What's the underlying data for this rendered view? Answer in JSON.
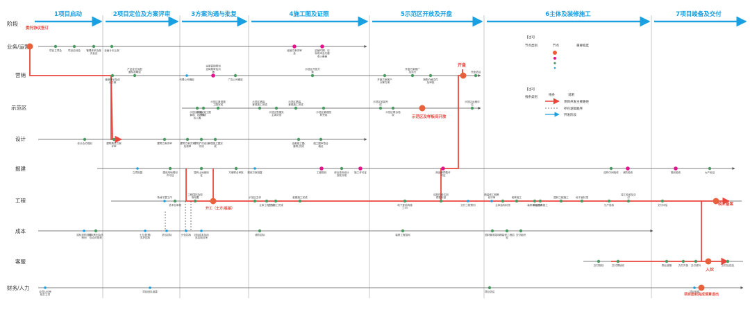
{
  "header": {
    "stage_label": "阶段",
    "phases": [
      "1项目启动",
      "2项目定位及方案评审",
      "3方案沟通与批复",
      "4施工图及证照",
      "5示范区开放及开盘",
      "6主体及装修施工",
      "7项目竣备及交付"
    ]
  },
  "lanes": [
    "业务/运营",
    "营销",
    "示范区",
    "设计",
    "报建",
    "工程",
    "成本",
    "客服",
    "财务/人力"
  ],
  "legend": {
    "title_nodes": "【注1】",
    "node_type_label": "节点类别",
    "node_label": "节点",
    "degree_label": "重要程度",
    "title_lines": "【注2】",
    "line_type_label": "线条类别",
    "line_label": "线条",
    "desc_label": "说明",
    "line_main": "项目开发主要路径",
    "line_logic": "存在逻辑顺序",
    "line_open": "开发阶段"
  },
  "milestones": {
    "sign": "委托协议签订",
    "open_sale": "开盘",
    "showroom": "示范区及样板间开放",
    "start": "开工（土方/桩基）",
    "topping": "竣工备案",
    "delivery": "入伙",
    "audit": "项目面积完成清算退出"
  },
  "nodes": {
    "ops_1": "项目立项会",
    "ops_2": "项目启动会",
    "ops_3": "管理体系及首次会议",
    "ops_4": "全面计划上报",
    "ops_5": "经营方案评审会",
    "ops_6": "启营时期、目标成本及代建收入最高",
    "mkt_1": "营销策划及设计方案",
    "mkt_2": "产品定位及配置标准确定",
    "mkt_3": "代理公司确定",
    "mkt_4": "全面营销策划全局报审及沟通",
    "mkt_5": "广告公司确定",
    "mkt_6": "示范区开放方案",
    "mkt_7": "开盘方案客户认筹方案",
    "mkt_8": "开盘方案推广及执行",
    "mkt_9": "销售价格文件及审批",
    "mkt_10": "开盘总结",
    "demo_1": "示范区精装、景观、园林单位入围",
    "demo_2": "示范区景观施工图完成",
    "demo_3": "示范区施工图完成",
    "demo_4": "示范区精装、景观施工完成",
    "demo_5": "示范区售楼处主体封顶",
    "demo_6": "示范区精装、景观施工完成",
    "demo_7": "示范区景观园林完成",
    "demo_8": "示范区软装完成",
    "demo_9": "示范区联合验收",
    "demo_10": "示范区运营评估",
    "des_1": "设计合约规划",
    "des_2": "建筑概念方案评审",
    "des_3": "建筑方案评审",
    "des_4": "建筑方案文本及报审",
    "des_5": "建筑扩初设计完成",
    "des_6": "景观施工图完成",
    "des_7": "全套施工图(建筑)完成",
    "des_8": "施工图审查合格证",
    "rep_1": "立项批复",
    "rep_2": "建设用地规划许可证",
    "rep_3": "国有土地使用证",
    "rep_4": "方案联合审批",
    "rep_5": "规划方案批复",
    "rep_6": "工程规划",
    "rep_7": "综合查询设计查批完成",
    "rep_8": "施工许可证",
    "rep_9": "商品房预售许可证",
    "rep_10": "结构中间验收",
    "rep_11": "消防验收",
    "rep_12": "规划验收",
    "rep_13": "大产权证",
    "eng_1": "场地平整工作",
    "eng_2": "总承包申报",
    "eng_3": "工程围挡及现场布置",
    "eng_4": "土方施工完成",
    "eng_5": "示范区主体",
    "eng_6": "主体工程完成",
    "eng_7": "桩基施工完成",
    "eng_8": "地下室结构施工±0",
    "eng_9": "结构阶段达到预售标准",
    "eng_10": "交付工程策划",
    "eng_11": "精装修工程策划评审",
    "eng_12": "主体结构封顶",
    "eng_13": "砌体施工",
    "eng_14": "装修单位进场",
    "eng_15": "园林工程施工",
    "eng_16": "升级园林施工",
    "eng_17": "地下室封顶",
    "eng_18": "分户验收",
    "eng_19": "竣工验收及交付",
    "eng_20": "交付评估",
    "cost_1": "招标策划及总包合约规划",
    "cost_2": "招标采购总体策划",
    "cost_3": "土方/桩基/支护招标",
    "cost_4": "总包招标",
    "cost_5": "目标成本及动态控制评审",
    "cost_6": "分包招标",
    "cost_7": "消防招标",
    "cost_8": "装修工程招标",
    "cost_9": "园林景观招标",
    "cost_10": "精装修工程招标",
    "cost_11": "交付组织",
    "cs_1": "交付规划",
    "cs_2": "交付预验收",
    "cs_3": "物业接管",
    "cs_4": "交付开放",
    "cs_5": "交付资料",
    "cs_6": "交付后总结",
    "fin_1": "合同EAS审核并立项",
    "fin_2": "项目团队组建",
    "fin_3": "项目总结",
    "fin_4": "项目完成"
  },
  "colors": {
    "phase_arrow": "#1aa0e0",
    "main_path": "#e8463c",
    "green_node": "#4a9b63",
    "magenta_node": "#e0148c",
    "blue_node": "#1aa0e0",
    "orange_node": "#e8603c",
    "grid": "#c8c8c8",
    "line": "#555555"
  }
}
